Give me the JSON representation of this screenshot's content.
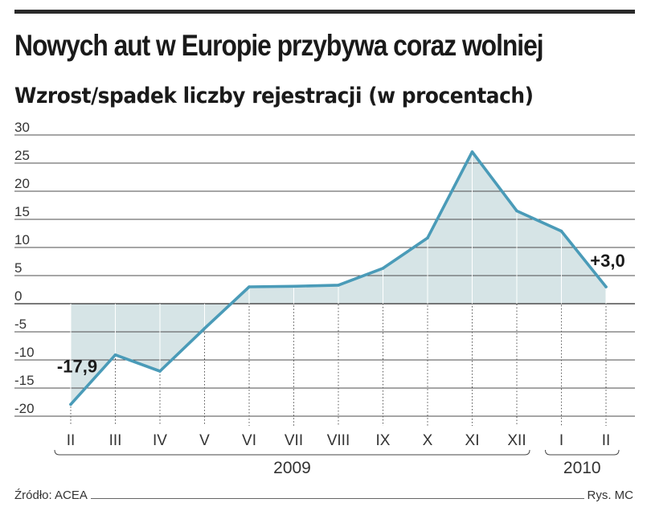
{
  "title": "Nowych aut w Europie przybywa coraz wolniej",
  "subtitle": "Wzrost/spadek liczby rejestracji (w procentach)",
  "source": "Źródło: ACEA",
  "credit": "Rys. MC",
  "colors": {
    "line": "#4a9bb8",
    "fill": "#d6e4e6",
    "grid": "#4d4d4d"
  },
  "chart_data": {
    "type": "area",
    "categories": [
      "II",
      "III",
      "IV",
      "V",
      "VI",
      "VII",
      "VIII",
      "IX",
      "X",
      "XI",
      "XII",
      "I",
      "II"
    ],
    "year_groups": [
      {
        "label": "2009",
        "from": 0,
        "to": 10
      },
      {
        "label": "2010",
        "from": 11,
        "to": 12
      }
    ],
    "values": [
      -17.9,
      -9.1,
      -12.0,
      -4.4,
      3.0,
      3.1,
      3.3,
      6.3,
      11.7,
      27.0,
      16.5,
      12.9,
      3.0
    ],
    "ylim": [
      -20,
      30
    ],
    "yticks": [
      30,
      25,
      20,
      15,
      10,
      5,
      0,
      -5,
      -10,
      -15,
      -20
    ],
    "annotations": [
      {
        "text": "-17,9",
        "index": 0
      },
      {
        "text": "+3,0",
        "index": 12
      }
    ],
    "xlabel": "",
    "ylabel": "",
    "grid": true
  }
}
